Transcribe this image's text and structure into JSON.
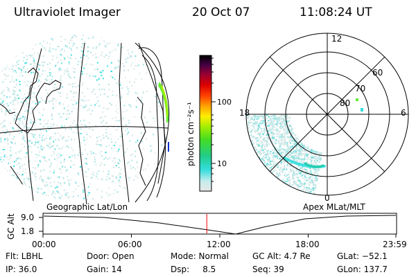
{
  "header": {
    "instrument": "Ultraviolet Imager",
    "date": "20 Oct 07",
    "time": "11:08:24 UT"
  },
  "colorbar": {
    "unit_label": "photon cm⁻²s⁻¹",
    "ticks": [
      "100",
      "10"
    ]
  },
  "polar": {
    "mlt_labels": [
      "12",
      "18",
      "6",
      "0"
    ],
    "lat_labels": [
      "60",
      "70",
      "80"
    ]
  },
  "projections": {
    "left": "Geographic Lat/Lon",
    "right": "Apex MLat/MLT"
  },
  "altitude_strip": {
    "ylabel": "GC Alt",
    "y_top": "9.0",
    "y_bottom": "1.8",
    "time_ticks": [
      "00:00",
      "06:00",
      "12:00",
      "18:00",
      "23:59"
    ],
    "current_time_hours": 11.14
  },
  "info": {
    "flt": "Flt: LBHL",
    "ip": "IP: 36.0",
    "door": "Door: Open",
    "gain": "Gain: 14",
    "mode": "Mode: Normal",
    "dsp": "Dsp:     8.5",
    "gcalt": "GC Alt: 4.7 Re",
    "seq": "Seq: 39",
    "glat": "GLat: −52.1",
    "glon": "GLon: 137.7"
  },
  "colors": {
    "aurora_cyan": "#33dddd",
    "aurora_green": "#66ee33",
    "marker_red": "#ff0000"
  }
}
